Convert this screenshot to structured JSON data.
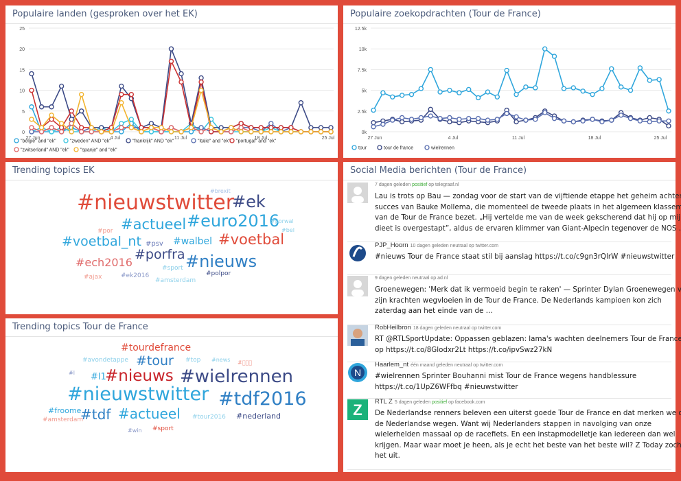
{
  "panels": {
    "countries": {
      "title": "Populaire landen (gesproken over het EK)"
    },
    "search": {
      "title": "Populaire zoekopdrachten (Tour de France)"
    },
    "trending_ek": {
      "title": "Trending topics EK"
    },
    "trending_tdf": {
      "title": "Trending topics Tour de France"
    },
    "social": {
      "title": "Social Media berichten (Tour de France)"
    }
  },
  "chart_data": [
    {
      "type": "line",
      "title": "Populaire landen (gesproken over het EK)",
      "ylim": [
        0,
        25
      ],
      "yticks": [
        "0",
        "5",
        "10",
        "15",
        "20",
        "25"
      ],
      "xtick_labels": [
        "27 Jun",
        "4 Jul",
        "11 Jul",
        "18 Jul",
        "25 Jul"
      ],
      "legend_position": "bottom",
      "series": [
        {
          "name": "\"belgie\" and \"ek\"",
          "color": "#2fa6dc",
          "values": [
            6,
            0,
            0,
            0,
            1,
            0,
            0,
            0,
            0,
            0,
            2,
            0,
            0,
            0,
            0,
            0,
            0,
            1,
            0,
            0,
            1,
            0,
            0,
            0,
            0,
            0,
            0,
            0,
            0,
            0,
            0
          ]
        },
        {
          "name": "\"zweden\" AND \"ek\"",
          "color": "#3ec6e0",
          "values": [
            0,
            1,
            0,
            1,
            0,
            0,
            0,
            1,
            0,
            2,
            3,
            0,
            0,
            0,
            0,
            0,
            2,
            0,
            3,
            0,
            0,
            0,
            0,
            0,
            1,
            0,
            0,
            0,
            0,
            0,
            0
          ]
        },
        {
          "name": "\"frankrijk\" AND \"ek\"",
          "color": "#3c4a86",
          "values": [
            14,
            6,
            6,
            11,
            3,
            5,
            1,
            1,
            1,
            11,
            8,
            1,
            2,
            1,
            20,
            14,
            2,
            13,
            1,
            1,
            1,
            2,
            1,
            1,
            1,
            1,
            1,
            7,
            1,
            1,
            1
          ]
        },
        {
          "name": "\"italie\" and \"ek\"",
          "color": "#5a6fb0",
          "values": [
            0,
            0,
            1,
            0,
            2,
            0,
            1,
            0,
            0,
            1,
            1,
            1,
            1,
            0,
            1,
            0,
            1,
            1,
            0,
            0,
            0,
            1,
            1,
            0,
            2,
            0,
            1,
            0,
            0,
            0,
            0
          ]
        },
        {
          "name": "\"portugal\" and \"ek\"",
          "color": "#cc3333",
          "values": [
            10,
            1,
            3,
            1,
            5,
            1,
            1,
            0,
            1,
            9,
            9,
            1,
            1,
            0,
            17,
            12,
            1,
            12,
            0,
            0,
            1,
            2,
            1,
            1,
            1,
            1,
            1,
            0,
            0,
            0,
            0
          ]
        },
        {
          "name": "\"zwitserland\" AND \"ek\"",
          "color": "#e06a6a",
          "values": [
            1,
            0,
            1,
            0,
            2,
            0,
            0,
            0,
            0,
            1,
            1,
            0,
            1,
            0,
            1,
            0,
            1,
            0,
            1,
            0,
            0,
            1,
            0,
            0,
            0,
            0,
            0,
            0,
            0,
            0,
            0
          ]
        },
        {
          "name": "\"spanje\" and \"ek\"",
          "color": "#f2b430",
          "values": [
            3,
            1,
            4,
            2,
            0,
            9,
            1,
            0,
            0,
            7,
            1,
            0,
            1,
            1,
            0,
            0,
            1,
            10,
            1,
            0,
            1,
            0,
            0,
            0,
            0,
            0,
            0,
            0,
            0,
            0,
            0
          ]
        }
      ]
    },
    {
      "type": "line",
      "title": "Populaire zoekopdrachten (Tour de France)",
      "ylim": [
        0,
        12500
      ],
      "yticks": [
        "0k",
        "2.5k",
        "5k",
        "7.5k",
        "10k",
        "12.5k"
      ],
      "xtick_labels": [
        "27 Jun",
        "4 Jul",
        "11 Jul",
        "18 Jul",
        "25 Jul"
      ],
      "legend_position": "bottom",
      "series": [
        {
          "name": "tour",
          "color": "#2fa6dc",
          "values": [
            2600,
            4700,
            4200,
            4400,
            4500,
            5200,
            7500,
            4800,
            5000,
            4700,
            5100,
            4100,
            4800,
            4200,
            7400,
            4500,
            5400,
            5300,
            10000,
            9100,
            5200,
            5300,
            4900,
            4500,
            5200,
            7600,
            5400,
            5000,
            7700,
            6200,
            6300,
            2500
          ]
        },
        {
          "name": "tour de france",
          "color": "#3c4a86",
          "values": [
            1100,
            1300,
            1500,
            1200,
            1300,
            1400,
            2700,
            1500,
            1200,
            1100,
            1300,
            1200,
            1100,
            1300,
            2600,
            1200,
            1400,
            1700,
            2500,
            1900,
            1300,
            1200,
            1400,
            1500,
            1300,
            1400,
            2300,
            1700,
            1400,
            1700,
            1500,
            700
          ]
        },
        {
          "name": "wielrennen",
          "color": "#5a6fb0",
          "values": [
            600,
            900,
            1400,
            1700,
            1500,
            1700,
            1900,
            1600,
            1700,
            1500,
            1600,
            1600,
            1400,
            1500,
            2200,
            1800,
            1400,
            1500,
            2300,
            1600,
            1300,
            1200,
            1300,
            1500,
            1200,
            1400,
            2000,
            1600,
            1300,
            1200,
            1300,
            1300
          ]
        }
      ]
    }
  ],
  "trending_ek": [
    {
      "text": "#nieuwstwitter",
      "size": 30,
      "color": "#e04b3a"
    },
    {
      "text": "#ek",
      "size": 24,
      "color": "#3c4a86"
    },
    {
      "text": "#euro2016",
      "size": 24,
      "color": "#2fa6dc"
    },
    {
      "text": "#actueel",
      "size": 21,
      "color": "#2fa6dc"
    },
    {
      "text": "#voetbal_nt",
      "size": 19,
      "color": "#2fa6dc"
    },
    {
      "text": "#voetbal",
      "size": 21,
      "color": "#e04b3a"
    },
    {
      "text": "#porfra",
      "size": 19,
      "color": "#3c4a86"
    },
    {
      "text": "#walbel",
      "size": 14,
      "color": "#2fa6dc"
    },
    {
      "text": "#nieuws",
      "size": 24,
      "color": "#2f7fc4"
    },
    {
      "text": "#ech2016",
      "size": 16,
      "color": "#e06a6a"
    },
    {
      "text": "#psv",
      "size": 10,
      "color": "#6a7ab8"
    },
    {
      "text": "#brexit",
      "size": 8,
      "color": "#a9c3e6"
    },
    {
      "text": "#por",
      "size": 9,
      "color": "#f19a8e"
    },
    {
      "text": "#porwal",
      "size": 8,
      "color": "#8dd0ea"
    },
    {
      "text": "#bel",
      "size": 8,
      "color": "#8dd0ea"
    },
    {
      "text": "#sport",
      "size": 9,
      "color": "#8dd0ea"
    },
    {
      "text": "#ajax",
      "size": 9,
      "color": "#f19a8e"
    },
    {
      "text": "#ek2016",
      "size": 9,
      "color": "#8a98c8"
    },
    {
      "text": "#amsterdam",
      "size": 9,
      "color": "#8dd0ea"
    },
    {
      "text": "#polpor",
      "size": 9,
      "color": "#3c4a86"
    }
  ],
  "trending_tdf": [
    {
      "text": "#tourdefrance",
      "size": 14,
      "color": "#e04b3a"
    },
    {
      "text": "#avondetappe",
      "size": 9,
      "color": "#8dd0ea"
    },
    {
      "text": "#tour",
      "size": 19,
      "color": "#2f7fc4"
    },
    {
      "text": "#top",
      "size": 9,
      "color": "#8dd0ea"
    },
    {
      "text": "#news",
      "size": 8,
      "color": "#8dd0ea"
    },
    {
      "text": "#\u0000\u0000\u0000",
      "size": 8,
      "color": "#f19a8e"
    },
    {
      "text": "#l",
      "size": 8,
      "color": "#8a98c8"
    },
    {
      "text": "#l1",
      "size": 13,
      "color": "#2fa6dc"
    },
    {
      "text": "#nieuws",
      "size": 23,
      "color": "#c8242a"
    },
    {
      "text": "#wielrennen",
      "size": 26,
      "color": "#3c4a86"
    },
    {
      "text": "#nieuwstwitter",
      "size": 27,
      "color": "#2fa6dc"
    },
    {
      "text": "#tdf2016",
      "size": 27,
      "color": "#2f7fc4"
    },
    {
      "text": "#froome",
      "size": 11,
      "color": "#2fa6dc"
    },
    {
      "text": "#tdf",
      "size": 20,
      "color": "#2f7fc4"
    },
    {
      "text": "#actueel",
      "size": 20,
      "color": "#2fa6dc"
    },
    {
      "text": "#amsterdam",
      "size": 9,
      "color": "#f19a8e"
    },
    {
      "text": "#tour2016",
      "size": 9,
      "color": "#8dd0ea"
    },
    {
      "text": "#nederland",
      "size": 11,
      "color": "#3c4a86"
    },
    {
      "text": "#win",
      "size": 8,
      "color": "#8a98c8"
    },
    {
      "text": "#sport",
      "size": 9,
      "color": "#e04b3a"
    }
  ],
  "posts": [
    {
      "avatar": "generic",
      "author": "",
      "meta_pre": "7 dagen geleden ",
      "sentiment": "positief",
      "meta_post": " op telegraaf.nl",
      "lines": [
        "Lau is trots op Bau — zondag voor de start van de vijftiende etappe het geheim achter het",
        "succes van Bauke Mollema, die momenteel de tweede plaats in het algemeen klassement",
        "van de Tour de France bezet. „Hij vertelde me van de week gekscherend dat hij op mijn",
        "dieet is overgestapt”, aldus de ervaren klimmer van Giant-Alpecin tegenover de NOS …"
      ]
    },
    {
      "avatar": "hoorn",
      "author": "PJP_Hoorn",
      "meta_pre": "10 dagen geleden ",
      "sentiment": "neutraal",
      "meta_post": " op twitter.com",
      "lines": [
        "#nieuws Tour de France staat stil bij aanslag https://t.co/c9gn3rQlrW #nieuwstwitter"
      ]
    },
    {
      "avatar": "generic",
      "author": "",
      "meta_pre": "9 dagen geleden ",
      "sentiment": "neutraal",
      "meta_post": " op ad.nl",
      "lines": [
        "Groenewegen: 'Merk dat ik vermoeid begin te raken' — Sprinter Dylan Groenewegen voelt",
        "zijn krachten wegvloeien in de Tour de France. De Nederlands kampioen kon zich",
        "zaterdag aan het einde van de …"
      ]
    },
    {
      "avatar": "photo",
      "author": "RobHeilbron",
      "meta_pre": "18 dagen geleden ",
      "sentiment": "neutraal",
      "meta_post": " op twitter.com",
      "lines": [
        "RT @RTLSportUpdate: Oppassen geblazen: lama's wachten deelnemers Tour de France",
        "op https://t.co/8Glodxr2Lt https://t.co/ipvSwz27kN"
      ]
    },
    {
      "avatar": "nlogo",
      "author": "Haarlem_nt",
      "meta_pre": "één maand geleden ",
      "sentiment": "neutraal",
      "meta_post": " op twitter.com",
      "lines": [
        "#wielrennen Sprinter Bouhanni mist Tour de France wegens handblessure",
        "https://t.co/1UpZ6WFfbq #nieuwstwitter"
      ]
    },
    {
      "avatar": "rtlz",
      "author": "RTL Z",
      "meta_pre": "5 dagen geleden ",
      "sentiment": "positief",
      "meta_post": " op facebook.com",
      "lines": [
        "De Nederlandse renners beleven een uiterst goede Tour de France en dat merken we op",
        "de Nederlandse wegen. Want wij Nederlanders stappen in navolging van onze",
        "wielerhelden massaal op de racefiets. En een instapmodelletje kan iedereen dan wel",
        "krijgen. Maar waar moet je heen, als je echt het beste van het beste wil? Z Today zocht",
        "het uit."
      ]
    }
  ]
}
